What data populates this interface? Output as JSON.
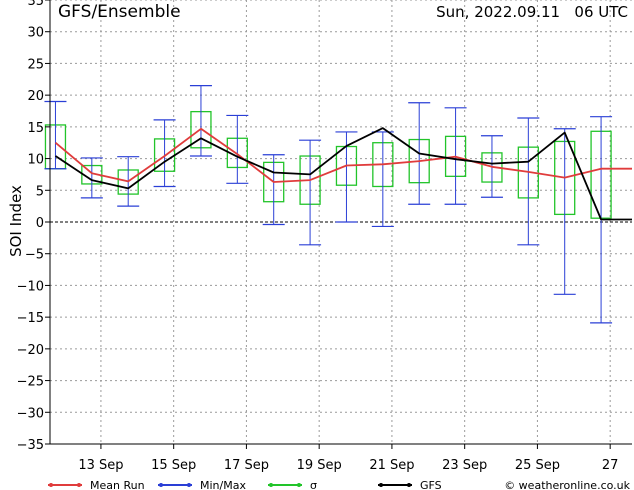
{
  "header": {
    "title": "GFS/Ensemble",
    "run": "Sun, 2022.09.11   06 UTC",
    "copyright": "© weatheronline.co.uk"
  },
  "legend": [
    {
      "label": "Mean Run",
      "color": "#e03c3c"
    },
    {
      "label": "Min/Max",
      "color": "#2a3fd6"
    },
    {
      "label": "σ",
      "color": "#22c42a"
    },
    {
      "label": "GFS",
      "color": "#000000"
    }
  ],
  "chart_data": {
    "type": "line",
    "ylabel": "SOI Index",
    "ylim": [
      -35,
      35
    ],
    "yticks": [
      35,
      30,
      25,
      20,
      15,
      10,
      5,
      0,
      -5,
      -10,
      -15,
      -20,
      -25,
      -30,
      -35
    ],
    "xlim": [
      11.6,
      27.6
    ],
    "xticks": [
      {
        "x": 13,
        "label": "13 Sep"
      },
      {
        "x": 15,
        "label": "15 Sep"
      },
      {
        "x": 17,
        "label": "17 Sep"
      },
      {
        "x": 19,
        "label": "19 Sep"
      },
      {
        "x": 21,
        "label": "21 Sep"
      },
      {
        "x": 23,
        "label": "23 Sep"
      },
      {
        "x": 25,
        "label": "25 Sep"
      },
      {
        "x": 27,
        "label": "27"
      }
    ],
    "grid": true,
    "x": [
      11.75,
      12.75,
      13.75,
      14.75,
      15.75,
      16.75,
      17.75,
      18.75,
      19.75,
      20.75,
      21.75,
      22.75,
      23.75,
      24.75,
      25.75,
      26.75,
      27.6
    ],
    "series": [
      {
        "name": "Mean Run",
        "color": "#e03c3c",
        "values": [
          12.5,
          7.7,
          6.4,
          10.4,
          14.7,
          10.7,
          6.3,
          6.6,
          8.9,
          9.1,
          9.6,
          10.3,
          8.7,
          7.9,
          7.0,
          8.4,
          8.4
        ]
      },
      {
        "name": "GFS",
        "color": "#000000",
        "values": [
          10.4,
          6.6,
          5.3,
          9.5,
          13.2,
          10.3,
          7.8,
          7.5,
          12.0,
          14.8,
          10.8,
          9.9,
          9.2,
          9.5,
          14.1,
          0.4,
          0.4
        ]
      }
    ],
    "minmax": [
      {
        "x": 11.75,
        "min": 8.4,
        "max": 19.0
      },
      {
        "x": 12.75,
        "min": 3.8,
        "max": 10.1
      },
      {
        "x": 13.75,
        "min": 2.5,
        "max": 10.3
      },
      {
        "x": 14.75,
        "min": 5.6,
        "max": 16.1
      },
      {
        "x": 15.75,
        "min": 10.4,
        "max": 21.5
      },
      {
        "x": 16.75,
        "min": 6.1,
        "max": 16.8
      },
      {
        "x": 17.75,
        "min": -0.4,
        "max": 10.6
      },
      {
        "x": 18.75,
        "min": -3.6,
        "max": 12.9
      },
      {
        "x": 19.75,
        "min": 0.0,
        "max": 14.2
      },
      {
        "x": 20.75,
        "min": -0.7,
        "max": 14.2
      },
      {
        "x": 21.75,
        "min": 2.8,
        "max": 18.8
      },
      {
        "x": 22.75,
        "min": 2.8,
        "max": 18.0
      },
      {
        "x": 23.75,
        "min": 3.9,
        "max": 13.6
      },
      {
        "x": 24.75,
        "min": -3.6,
        "max": 16.4
      },
      {
        "x": 25.75,
        "min": -11.4,
        "max": 14.7
      },
      {
        "x": 26.75,
        "min": -15.9,
        "max": 16.6
      }
    ],
    "sigma": [
      {
        "x": 11.75,
        "low": 8.4,
        "high": 15.3
      },
      {
        "x": 12.75,
        "low": 6.0,
        "high": 8.9
      },
      {
        "x": 13.75,
        "low": 4.4,
        "high": 8.2
      },
      {
        "x": 14.75,
        "low": 8.0,
        "high": 13.1
      },
      {
        "x": 15.75,
        "low": 11.7,
        "high": 17.4
      },
      {
        "x": 16.75,
        "low": 8.6,
        "high": 13.2
      },
      {
        "x": 17.75,
        "low": 3.2,
        "high": 9.4
      },
      {
        "x": 18.75,
        "low": 2.8,
        "high": 10.4
      },
      {
        "x": 19.75,
        "low": 5.8,
        "high": 11.9
      },
      {
        "x": 20.75,
        "low": 5.6,
        "high": 12.5
      },
      {
        "x": 21.75,
        "low": 6.2,
        "high": 13.0
      },
      {
        "x": 22.75,
        "low": 7.2,
        "high": 13.5
      },
      {
        "x": 23.75,
        "low": 6.3,
        "high": 10.9
      },
      {
        "x": 24.75,
        "low": 3.8,
        "high": 11.8
      },
      {
        "x": 25.75,
        "low": 1.2,
        "high": 12.7
      },
      {
        "x": 26.75,
        "low": 0.6,
        "high": 14.3
      }
    ]
  }
}
